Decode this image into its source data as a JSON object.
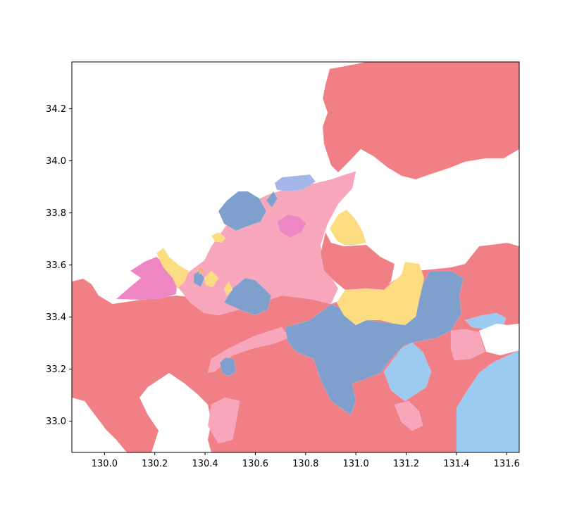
{
  "map": {
    "xlim": [
      129.87,
      131.65
    ],
    "ylim": [
      32.88,
      34.38
    ],
    "x_ticks": [
      "130.0",
      "130.2",
      "130.4",
      "130.6",
      "130.8",
      "131.0",
      "131.2",
      "131.4",
      "131.6"
    ],
    "x_tick_values": [
      130.0,
      130.2,
      130.4,
      130.6,
      130.8,
      131.0,
      131.2,
      131.4,
      131.6
    ],
    "y_ticks": [
      "33.0",
      "33.2",
      "33.4",
      "33.6",
      "33.8",
      "34.0",
      "34.2"
    ],
    "y_tick_values": [
      33.0,
      33.2,
      33.4,
      33.6,
      33.8,
      34.0,
      34.2
    ],
    "colors": {
      "coral": "#f07f86",
      "light_pink": "#f7a6bb",
      "magenta_pink": "#ef86c4",
      "steel_blue": "#7f9fcd",
      "periwinkle": "#a4b5e8",
      "sky_blue": "#9ccbf2",
      "yellow": "#fbdc80",
      "orange": "#f6ad8f"
    }
  }
}
